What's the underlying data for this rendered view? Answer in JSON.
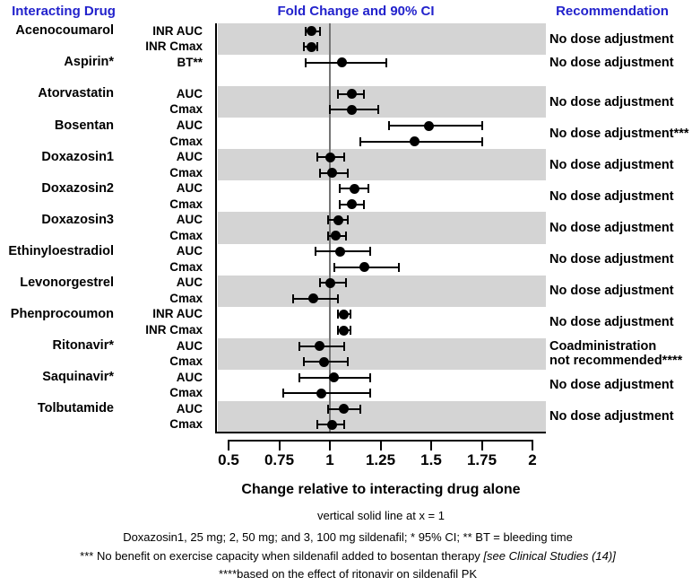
{
  "header": {
    "col_drug": "Interacting Drug",
    "col_plot": "Fold Change and 90% CI",
    "col_rec": "Recommendation"
  },
  "chart_data": {
    "type": "scatter",
    "variant": "forest_plot_dot_with_ci",
    "title": "Fold Change and 90% CI",
    "xlabel": "Change relative to interacting drug alone",
    "xlim": [
      0.5,
      2
    ],
    "grid": false,
    "reference_line_x": 1,
    "reference_note": "vertical solid line at x = 1",
    "ticks": [
      {
        "v": 0.5,
        "label": "0.5"
      },
      {
        "v": 0.75,
        "label": "0.75"
      },
      {
        "v": 1,
        "label": "1"
      },
      {
        "v": 1.25,
        "label": "1.25"
      },
      {
        "v": 1.5,
        "label": "1.5"
      },
      {
        "v": 1.75,
        "label": "1.75"
      },
      {
        "v": 2,
        "label": "2"
      }
    ],
    "groups": [
      {
        "drug": "Acenocoumarol",
        "shaded": true,
        "recommendation": "No dose adjustment",
        "rows": [
          {
            "metric": "INR AUC",
            "value": 0.91,
            "lo": 0.88,
            "hi": 0.95
          },
          {
            "metric": "INR Cmax",
            "value": 0.91,
            "lo": 0.87,
            "hi": 0.94
          }
        ]
      },
      {
        "drug": "Aspirin*",
        "shaded": false,
        "blank_row": true,
        "recommendation": "No dose adjustment",
        "rows": [
          {
            "metric": "BT**",
            "value": 1.06,
            "lo": 0.88,
            "hi": 1.28
          }
        ]
      },
      {
        "drug": "Atorvastatin",
        "shaded": true,
        "recommendation": "No dose adjustment",
        "rows": [
          {
            "metric": "AUC",
            "value": 1.11,
            "lo": 1.04,
            "hi": 1.17
          },
          {
            "metric": "Cmax",
            "value": 1.11,
            "lo": 1.0,
            "hi": 1.24
          }
        ]
      },
      {
        "drug": "Bosentan",
        "shaded": false,
        "recommendation": "No dose adjustment***",
        "rows": [
          {
            "metric": "AUC",
            "value": 1.49,
            "lo": 1.29,
            "hi": 1.75
          },
          {
            "metric": "Cmax",
            "value": 1.42,
            "lo": 1.15,
            "hi": 1.75
          }
        ]
      },
      {
        "drug": "Doxazosin1",
        "shaded": true,
        "recommendation": "No dose adjustment",
        "rows": [
          {
            "metric": "AUC",
            "value": 1.0,
            "lo": 0.94,
            "hi": 1.07
          },
          {
            "metric": "Cmax",
            "value": 1.01,
            "lo": 0.95,
            "hi": 1.09
          }
        ]
      },
      {
        "drug": "Doxazosin2",
        "shaded": false,
        "recommendation": "No dose adjustment",
        "rows": [
          {
            "metric": "AUC",
            "value": 1.12,
            "lo": 1.05,
            "hi": 1.19
          },
          {
            "metric": "Cmax",
            "value": 1.11,
            "lo": 1.05,
            "hi": 1.17
          }
        ]
      },
      {
        "drug": "Doxazosin3",
        "shaded": true,
        "recommendation": "No dose adjustment",
        "rows": [
          {
            "metric": "AUC",
            "value": 1.04,
            "lo": 0.99,
            "hi": 1.09
          },
          {
            "metric": "Cmax",
            "value": 1.03,
            "lo": 0.99,
            "hi": 1.08
          }
        ]
      },
      {
        "drug": "Ethinyloestradiol",
        "shaded": false,
        "recommendation": "No dose adjustment",
        "rows": [
          {
            "metric": "AUC",
            "value": 1.05,
            "lo": 0.93,
            "hi": 1.2
          },
          {
            "metric": "Cmax",
            "value": 1.17,
            "lo": 1.02,
            "hi": 1.34
          }
        ]
      },
      {
        "drug": "Levonorgestrel",
        "shaded": true,
        "recommendation": "No dose adjustment",
        "rows": [
          {
            "metric": "AUC",
            "value": 1.0,
            "lo": 0.95,
            "hi": 1.08
          },
          {
            "metric": "Cmax",
            "value": 0.92,
            "lo": 0.82,
            "hi": 1.04
          }
        ]
      },
      {
        "drug": "Phenprocoumon",
        "shaded": false,
        "recommendation": "No dose adjustment",
        "rows": [
          {
            "metric": "INR AUC",
            "value": 1.07,
            "lo": 1.04,
            "hi": 1.1
          },
          {
            "metric": "INR Cmax",
            "value": 1.07,
            "lo": 1.04,
            "hi": 1.1
          }
        ]
      },
      {
        "drug": "Ritonavir*",
        "shaded": true,
        "recommendation": "Coadministration\nnot recommended****",
        "rows": [
          {
            "metric": "AUC",
            "value": 0.95,
            "lo": 0.85,
            "hi": 1.07
          },
          {
            "metric": "Cmax",
            "value": 0.97,
            "lo": 0.87,
            "hi": 1.09
          }
        ]
      },
      {
        "drug": "Saquinavir*",
        "shaded": false,
        "recommendation": "No dose adjustment",
        "rows": [
          {
            "metric": "AUC",
            "value": 1.02,
            "lo": 0.85,
            "hi": 1.2
          },
          {
            "metric": "Cmax",
            "value": 0.96,
            "lo": 0.77,
            "hi": 1.2
          }
        ]
      },
      {
        "drug": "Tolbutamide",
        "shaded": true,
        "recommendation": "No dose adjustment",
        "rows": [
          {
            "metric": "AUC",
            "value": 1.07,
            "lo": 0.99,
            "hi": 1.15
          },
          {
            "metric": "Cmax",
            "value": 1.01,
            "lo": 0.94,
            "hi": 1.07
          }
        ]
      }
    ]
  },
  "footnotes": [
    {
      "pre": "Doxazosin1, 25 mg; 2, 50 mg; and 3, 100 mg sildenafil; * 95% CI; ** BT = bleeding time",
      "italic": ""
    },
    {
      "pre": "*** No benefit on exercise capacity when sildenafil added to bosentan therapy  ",
      "italic": "[see Clinical Studies (14)]"
    },
    {
      "pre": "****based on the effect of ritonavir on sildenafil PK",
      "italic": ""
    }
  ],
  "colors": {
    "header_blue": "#2222cc",
    "band_gray": "#d4d4d4",
    "marker_black": "#000000",
    "reference_line_gray": "#757575"
  }
}
